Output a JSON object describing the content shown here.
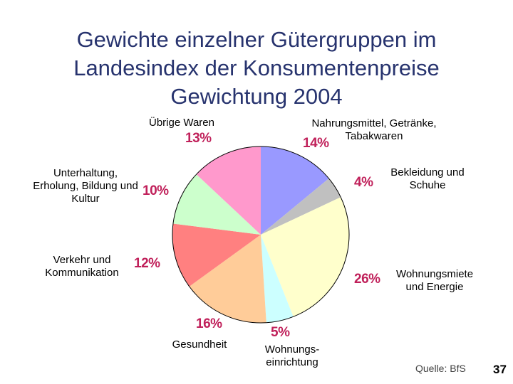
{
  "title": "Gewichte einzelner Gütergruppen im\nLandesindex der Konsumentenpreise\nGewichtung 2004",
  "source": "Quelle: BfS",
  "page_number": "37",
  "chart_data": {
    "type": "pie",
    "title": "Gewichte einzelner Gütergruppen im Landesindex der Konsumentenpreise Gewichtung 2004",
    "slices": [
      {
        "label": "Nahrungsmittel, Getränke,\nTabakwaren",
        "value": 14,
        "display": "14%",
        "color": "#9999ff"
      },
      {
        "label": "Bekleidung und\nSchuhe",
        "value": 4,
        "display": "4%",
        "color": "#c0c0c0"
      },
      {
        "label": "Wohnungsmiete\nund Energie",
        "value": 26,
        "display": "26%",
        "color": "#ffffcc"
      },
      {
        "label": "Wohnungs-\neinrichtung",
        "value": 5,
        "display": "5%",
        "color": "#ccffff"
      },
      {
        "label": "Gesundheit",
        "value": 16,
        "display": "16%",
        "color": "#ffcc99"
      },
      {
        "label": "Verkehr und\nKommunikation",
        "value": 12,
        "display": "12%",
        "color": "#ff8080"
      },
      {
        "label": "Unterhaltung,\nErholung, Bildung und\nKultur",
        "value": 10,
        "display": "10%",
        "color": "#ccffcc"
      },
      {
        "label": "Übrige Waren",
        "value": 13,
        "display": "13%",
        "color": "#ff99cc"
      }
    ]
  }
}
